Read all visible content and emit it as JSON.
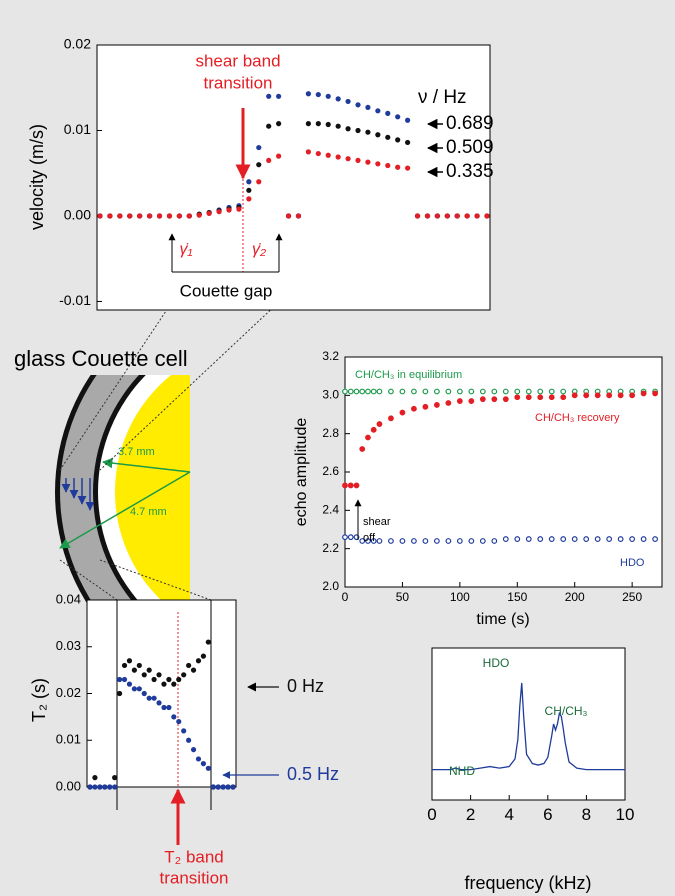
{
  "chart_data": [
    {
      "type": "dot",
      "ylabel": "velocity (m/s)",
      "categories": [
        null,
        null,
        null,
        null,
        null,
        null,
        null,
        null,
        null,
        null,
        null,
        null,
        null,
        null,
        null,
        null,
        null,
        null,
        null,
        null,
        null,
        null,
        null,
        null,
        null,
        null,
        null,
        null,
        null,
        null,
        null,
        null,
        null,
        null,
        null,
        null,
        null,
        null,
        null,
        null
      ],
      "ylim": [
        -0.011,
        0.02
      ],
      "yticks": [
        0.02,
        0.01,
        {
          "value": 0,
          "label": "0.00"
        },
        -0.01
      ],
      "legend_title": "ν / Hz",
      "annotations": [
        "shear band",
        "transition",
        "γ̇₁",
        "γ̇₂",
        "Couette gap"
      ],
      "series": [
        {
          "name": "0.689",
          "color": "#1f3c9c",
          "values": [
            0,
            0,
            0,
            0,
            0,
            0,
            0,
            0,
            0,
            0,
            0.0002,
            0.0004,
            0.0007,
            0.001,
            0.0012,
            0.004,
            0.008,
            0.014,
            0.014,
            0,
            0,
            0.0143,
            0.0142,
            0.014,
            0.0137,
            0.0134,
            0.013,
            0.0127,
            0.0123,
            0.012,
            0.0116,
            0.0112,
            0,
            0,
            0,
            0,
            0,
            0,
            0,
            0
          ]
        },
        {
          "name": "0.509",
          "color": "#111111",
          "values": [
            0,
            0,
            0,
            0,
            0,
            0,
            0,
            0,
            0,
            0,
            0.0002,
            0.0004,
            0.0006,
            0.0008,
            0.001,
            0.003,
            0.006,
            0.0105,
            0.0108,
            0,
            0,
            0.0108,
            0.0108,
            0.0107,
            0.0105,
            0.0102,
            0.01,
            0.0098,
            0.0095,
            0.0092,
            0.0089,
            0.0086,
            0,
            0,
            0,
            0,
            0,
            0,
            0,
            0
          ]
        },
        {
          "name": "0.335",
          "color": "#e31e24",
          "values": [
            0,
            0,
            0,
            0,
            0,
            0,
            0,
            0,
            0,
            0,
            0.0001,
            0.0003,
            0.0005,
            0.0007,
            0.0008,
            0.002,
            0.004,
            0.0065,
            0.007,
            0,
            0,
            0.0075,
            0.0073,
            0.0071,
            0.0069,
            0.0067,
            0.0065,
            0.0063,
            0.0061,
            0.0059,
            0.0057,
            0.0056,
            0,
            0,
            0,
            0,
            0,
            0,
            0,
            0
          ]
        }
      ]
    },
    {
      "type": "scatter",
      "xlabel": "time (s)",
      "ylabel": "echo amplitude",
      "x": [
        0,
        5,
        10,
        15,
        20,
        25,
        30,
        40,
        50,
        60,
        70,
        80,
        90,
        100,
        110,
        120,
        130,
        140,
        150,
        160,
        170,
        180,
        190,
        200,
        210,
        220,
        230,
        240,
        250,
        260,
        270
      ],
      "xlim": [
        0,
        276
      ],
      "xticks": [
        0,
        50,
        100,
        150,
        200,
        250
      ],
      "ylim": [
        2,
        3.2
      ],
      "yticks": [
        {
          "value": 2,
          "label": "2.0"
        },
        2.2,
        2.4,
        2.6,
        2.8,
        {
          "value": 3,
          "label": "3.0"
        },
        3.2
      ],
      "annotations": [
        "shear",
        "off"
      ],
      "series": [
        {
          "name": "CH/CH₃ in equilibrium",
          "color": "#1a9a4a",
          "values": [
            3.02,
            3.02,
            3.02,
            3.02,
            3.02,
            3.02,
            3.02,
            3.02,
            3.02,
            3.02,
            3.02,
            3.02,
            3.02,
            3.02,
            3.02,
            3.02,
            3.02,
            3.02,
            3.02,
            3.02,
            3.02,
            3.02,
            3.02,
            3.02,
            3.02,
            3.02,
            3.02,
            3.02,
            3.02,
            3.02,
            3.02
          ]
        },
        {
          "name": "CH/CH₃ recovery",
          "color": "#e31e24",
          "values": [
            2.53,
            2.53,
            2.53,
            2.72,
            2.78,
            2.82,
            2.85,
            2.88,
            2.91,
            2.93,
            2.94,
            2.95,
            2.96,
            2.97,
            2.97,
            2.98,
            2.98,
            2.98,
            2.99,
            2.99,
            2.99,
            2.99,
            2.99,
            3.0,
            3.0,
            3.0,
            3.0,
            3.0,
            3.0,
            3.01,
            3.01
          ]
        },
        {
          "name": "HDO",
          "color": "#1f3c9c",
          "values": [
            2.26,
            2.26,
            2.26,
            2.24,
            2.24,
            2.24,
            2.24,
            2.24,
            2.24,
            2.24,
            2.24,
            2.24,
            2.24,
            2.24,
            2.24,
            2.24,
            2.24,
            2.25,
            2.25,
            2.25,
            2.25,
            2.25,
            2.25,
            2.25,
            2.25,
            2.25,
            2.25,
            2.25,
            2.25,
            2.25,
            2.25
          ]
        }
      ]
    },
    {
      "type": "dot",
      "ylabel": "T₂ (s)",
      "categories": [
        null,
        null,
        null,
        null,
        null,
        null,
        null,
        null,
        null,
        null,
        null,
        null,
        null,
        null,
        null,
        null,
        null,
        null,
        null,
        null,
        null,
        null,
        null,
        null,
        null,
        null,
        null,
        null,
        null,
        null
      ],
      "ylim": [
        0,
        0.04
      ],
      "yticks": [
        0.04,
        0.03,
        0.02,
        0.01,
        {
          "value": 0,
          "label": "0.00"
        }
      ],
      "annotations": [
        "T₂ band",
        "transition"
      ],
      "series": [
        {
          "name": "0 Hz",
          "color": "#111111",
          "values": [
            0,
            0.002,
            0,
            0,
            0,
            0.002,
            0.02,
            0.026,
            0.027,
            0.025,
            0.026,
            0.024,
            0.025,
            0.023,
            0.024,
            0.022,
            0.023,
            0.022,
            0.023,
            0.024,
            0.026,
            0.025,
            0.027,
            0.028,
            0.031,
            0,
            0,
            0,
            0,
            0
          ]
        },
        {
          "name": "0.5 Hz",
          "color": "#1f3c9c",
          "values": [
            0,
            0,
            0,
            0,
            0,
            0,
            0.023,
            0.023,
            0.022,
            0.021,
            0.021,
            0.02,
            0.019,
            0.019,
            0.018,
            0.017,
            0.017,
            0.015,
            0.014,
            0.012,
            0.01,
            0.008,
            0.006,
            0.005,
            0.004,
            0,
            0,
            0,
            0,
            0
          ]
        }
      ]
    },
    {
      "type": "line",
      "xlabel": "frequency (kHz)",
      "color": "#1f3c9c",
      "x": [
        0,
        1,
        1.2,
        1.5,
        2,
        2.5,
        3,
        3.5,
        4,
        4.3,
        4.45,
        4.55,
        4.65,
        4.75,
        4.9,
        5.2,
        5.5,
        5.8,
        6.0,
        6.2,
        6.3,
        6.4,
        6.5,
        6.6,
        6.7,
        6.8,
        6.9,
        7.1,
        7.5,
        8,
        9,
        10
      ],
      "values": [
        0.2,
        0.2,
        0.21,
        0.2,
        0.2,
        0.21,
        0.22,
        0.21,
        0.22,
        0.27,
        0.4,
        0.62,
        0.77,
        0.55,
        0.3,
        0.24,
        0.23,
        0.24,
        0.28,
        0.42,
        0.5,
        0.46,
        0.5,
        0.57,
        0.55,
        0.47,
        0.38,
        0.25,
        0.21,
        0.2,
        0.2,
        0.2
      ],
      "xlim": [
        0,
        10
      ],
      "xticks": [
        0,
        2,
        4,
        6,
        8,
        10
      ],
      "ylim": [
        0,
        1
      ],
      "annotations": [
        "HDO",
        "NHD",
        "CH/CH₃"
      ]
    }
  ],
  "diagram": {
    "title": "glass Couette cell",
    "inner_label": "3.7 mm",
    "outer_label": "4.7 mm"
  }
}
